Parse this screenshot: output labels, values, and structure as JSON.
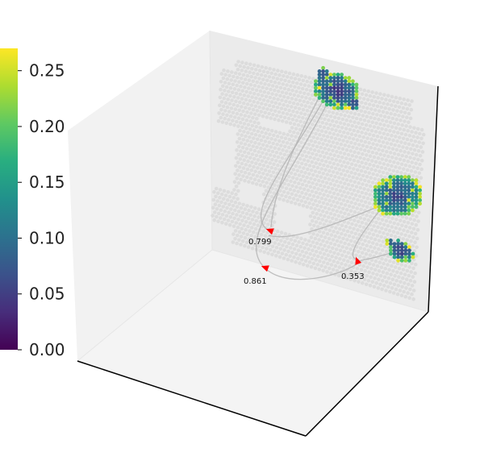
{
  "chart_data": {
    "type": "scatter",
    "projection": "3d",
    "title": "",
    "colorbar": {
      "colormap": "viridis",
      "range": [
        0.0,
        0.27
      ],
      "ticks": [
        "0.00",
        "0.05",
        "0.10",
        "0.15",
        "0.20",
        "0.25"
      ]
    },
    "background_spots_color": "#dcdcdc",
    "clusters": [
      {
        "name": "",
        "approx_center_value": 0.07
      },
      {
        "name": "",
        "approx_center_value": 0.09
      },
      {
        "name": "",
        "approx_center_value": 0.07
      }
    ],
    "trajectories": [
      {
        "label": "0.799"
      },
      {
        "label": "0.861"
      },
      {
        "label": "0.353"
      }
    ],
    "arrow_color": "#ff0000",
    "curve_color": "#b4b4b4"
  }
}
